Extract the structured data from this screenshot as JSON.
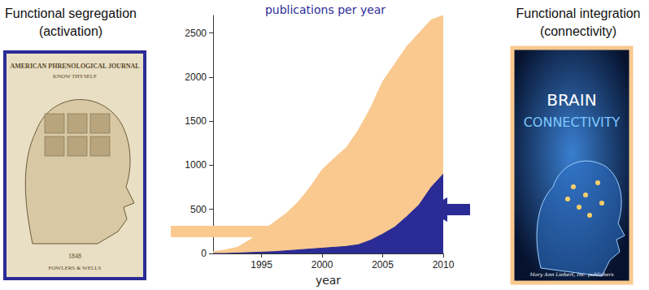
{
  "chart_data": {
    "type": "area",
    "title": "publications per year",
    "x_label": "year",
    "x": [
      1991,
      1992,
      1993,
      1994,
      1995,
      1996,
      1997,
      1998,
      1999,
      2000,
      2001,
      2002,
      2003,
      2004,
      2005,
      2006,
      2007,
      2008,
      2009,
      2010
    ],
    "series": [
      {
        "color": "#f9c98f",
        "values": [
          20,
          40,
          70,
          150,
          250,
          350,
          450,
          580,
          750,
          950,
          1080,
          1200,
          1400,
          1650,
          1950,
          2150,
          2350,
          2500,
          2650,
          2700
        ]
      },
      {
        "color": "#2b2b96",
        "values": [
          0,
          0,
          5,
          10,
          15,
          20,
          30,
          40,
          50,
          60,
          70,
          80,
          100,
          150,
          220,
          300,
          420,
          550,
          750,
          900
        ]
      }
    ],
    "xlim": [
      1991,
      2010
    ],
    "xticks": [
      1995,
      2000,
      2005,
      2010
    ],
    "ylim": [
      0,
      2700
    ],
    "yticks": [
      0,
      500,
      1000,
      1500,
      2000,
      2500
    ],
    "stacked": false,
    "grid": false
  },
  "panels": {
    "left": {
      "heading": "Functional segregation",
      "subheading": "(activation)",
      "border_color": "#2b2b96",
      "cover_text": [
        "AMERICAN PHRENOLOGICAL JOURNAL",
        "KNOW THYSELF",
        "1848",
        "FOWLERS & WELLS"
      ]
    },
    "right": {
      "heading": "Functional integration",
      "subheading": "(connectivity)",
      "border_color": "#f9c98f",
      "cover_text": [
        "BRAIN",
        "CONNECTIVITY",
        "Mary Ann Liebert, Inc. publishers"
      ]
    }
  }
}
